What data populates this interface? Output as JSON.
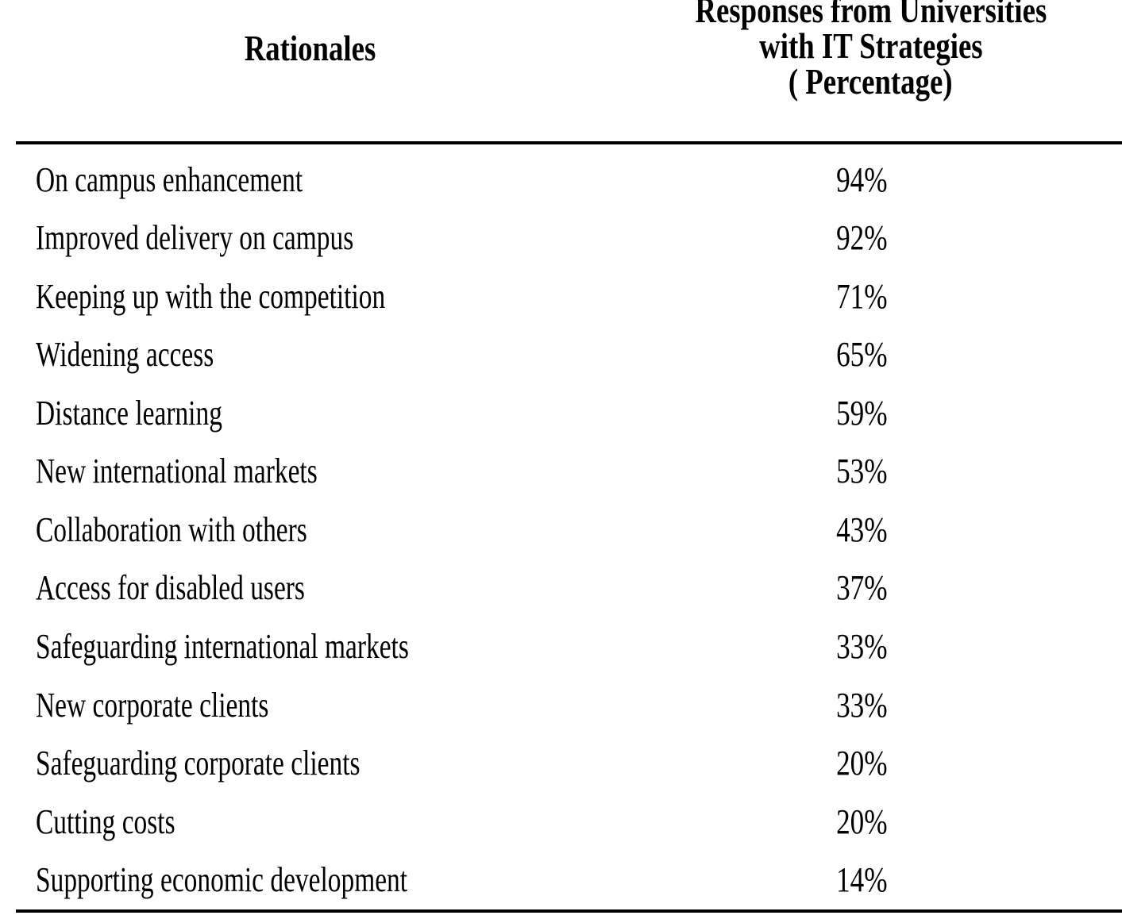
{
  "table": {
    "header": {
      "rationales": "Rationales",
      "responses_line1": "Responses from Universities",
      "responses_line2": "with IT Strategies",
      "responses_line3": "( Percentage)"
    },
    "rows": [
      {
        "rationale": "On campus enhancement",
        "percentage": "94%"
      },
      {
        "rationale": "Improved delivery on campus",
        "percentage": "92%"
      },
      {
        "rationale": "Keeping up with the competition",
        "percentage": "71%"
      },
      {
        "rationale": "Widening access",
        "percentage": "65%"
      },
      {
        "rationale": "Distance learning",
        "percentage": "59%"
      },
      {
        "rationale": "New international markets",
        "percentage": "53%"
      },
      {
        "rationale": "Collaboration with others",
        "percentage": "43%"
      },
      {
        "rationale": "Access for disabled users",
        "percentage": "37%"
      },
      {
        "rationale": "Safeguarding international markets",
        "percentage": "33%"
      },
      {
        "rationale": "New corporate clients",
        "percentage": "33%"
      },
      {
        "rationale": "Safeguarding corporate clients",
        "percentage": "20%"
      },
      {
        "rationale": "Cutting costs",
        "percentage": "20%"
      },
      {
        "rationale": "Supporting economic development",
        "percentage": "14%"
      }
    ],
    "text_color": "#000000",
    "background_color": "#ffffff",
    "rule_color": "#000000"
  }
}
